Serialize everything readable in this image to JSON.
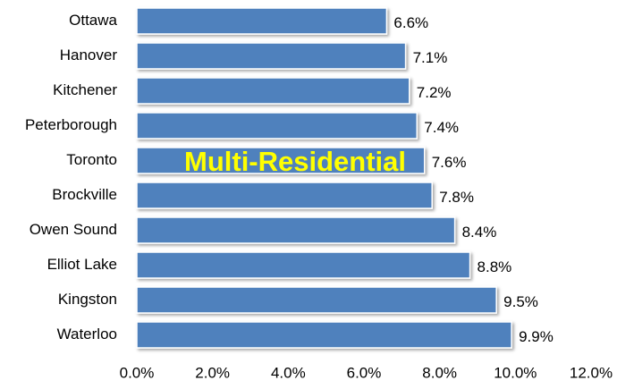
{
  "chart_data": {
    "type": "bar",
    "orientation": "horizontal",
    "categories": [
      "Ottawa",
      "Hanover",
      "Kitchener",
      "Peterborough",
      "Toronto",
      "Brockville",
      "Owen Sound",
      "Elliot Lake",
      "Kingston",
      "Waterloo"
    ],
    "values": [
      6.6,
      7.1,
      7.2,
      7.4,
      7.6,
      7.8,
      8.4,
      8.8,
      9.5,
      9.9
    ],
    "value_labels": [
      "6.6%",
      "7.1%",
      "7.2%",
      "7.4%",
      "7.6%",
      "7.8%",
      "8.4%",
      "8.8%",
      "9.5%",
      "9.9%"
    ],
    "color": "#4f81bd",
    "xlim": [
      0,
      12
    ],
    "xticks": [
      {
        "value": 0,
        "label": "0.0%"
      },
      {
        "value": 2,
        "label": "2.0%"
      },
      {
        "value": 4,
        "label": "4.0%"
      },
      {
        "value": 6,
        "label": "6.0%"
      },
      {
        "value": 8,
        "label": "8.0%"
      },
      {
        "value": 10,
        "label": "10.0%"
      },
      {
        "value": 12,
        "label": "12.0%"
      }
    ],
    "grid": false,
    "annotation": "Multi-Residential"
  }
}
